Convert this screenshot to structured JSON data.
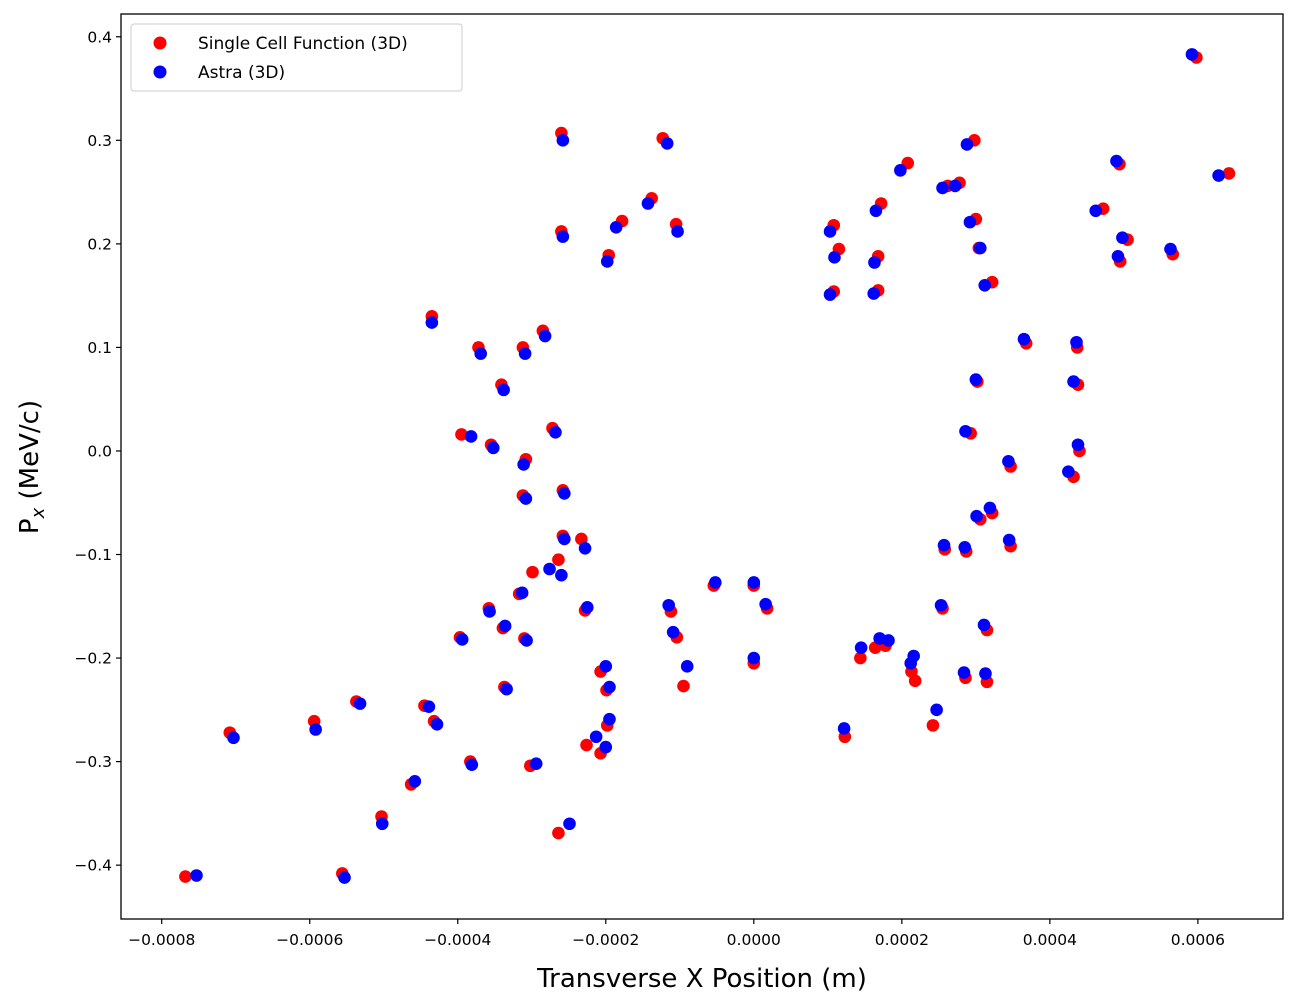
{
  "chart_data": {
    "type": "scatter",
    "title": "",
    "xlabel": "Transverse X Position (m)",
    "ylabel": "P",
    "ylabel_sub": "x",
    "ylabel_suffix": " (MeV/c)",
    "xlim": [
      -0.000855,
      0.000715
    ],
    "ylim": [
      -0.452,
      0.422
    ],
    "grid": false,
    "legend_position": "top-left",
    "x_ticks": [
      -0.0008,
      -0.0006,
      -0.0004,
      -0.0002,
      0.0,
      0.0002,
      0.0004,
      0.0006
    ],
    "x_tick_labels": [
      "−0.0008",
      "−0.0006",
      "−0.0004",
      "−0.0002",
      "0.0000",
      "0.0002",
      "0.0004",
      "0.0006"
    ],
    "y_ticks": [
      -0.4,
      -0.3,
      -0.2,
      -0.1,
      0.0,
      0.1,
      0.2,
      0.3,
      0.4
    ],
    "y_tick_labels": [
      "−0.4",
      "−0.3",
      "−0.2",
      "−0.1",
      "0.0",
      "0.1",
      "0.2",
      "0.3",
      "0.4"
    ],
    "series": [
      {
        "name": "Single Cell Function (3D)",
        "color": "#ff0000",
        "points": [
          [
            0.000598,
            0.38
          ],
          [
            0.000642,
            0.268
          ],
          [
            0.000566,
            0.19
          ],
          [
            0.000505,
            0.204
          ],
          [
            0.000495,
            0.183
          ],
          [
            0.000494,
            0.277
          ],
          [
            0.000472,
            0.234
          ],
          [
            0.000298,
            0.3
          ],
          [
            0.000278,
            0.259
          ],
          [
            0.000262,
            0.256
          ],
          [
            0.0003,
            0.224
          ],
          [
            0.000304,
            0.196
          ],
          [
            0.000322,
            0.163
          ],
          [
            0.000208,
            0.278
          ],
          [
            0.000172,
            0.239
          ],
          [
            0.000168,
            0.188
          ],
          [
            0.000168,
            0.155
          ],
          [
            0.000108,
            0.218
          ],
          [
            0.000108,
            0.154
          ],
          [
            0.000115,
            0.195
          ],
          [
            0.000368,
            0.104
          ],
          [
            0.000437,
            0.1
          ],
          [
            0.000438,
            0.064
          ],
          [
            0.000302,
            0.067
          ],
          [
            0.000293,
            0.017
          ],
          [
            0.00044,
            0.0
          ],
          [
            0.000432,
            -0.025
          ],
          [
            0.000347,
            -0.015
          ],
          [
            0.000322,
            -0.06
          ],
          [
            0.000306,
            -0.066
          ],
          [
            0.000347,
            -0.092
          ],
          [
            0.000287,
            -0.097
          ],
          [
            0.000258,
            -0.095
          ],
          [
            0.000255,
            -0.152
          ],
          [
            0.000315,
            -0.173
          ],
          [
            0.000315,
            -0.223
          ],
          [
            0.000286,
            -0.219
          ],
          [
            0.000242,
            -0.265
          ],
          [
            0.000218,
            -0.222
          ],
          [
            0.000213,
            -0.213
          ],
          [
            0.000123,
            -0.276
          ],
          [
            0.000144,
            -0.2
          ],
          [
            0.000164,
            -0.19
          ],
          [
            0.000178,
            -0.188
          ],
          [
            -0.000123,
            0.302
          ],
          [
            -0.00026,
            0.307
          ],
          [
            -0.00026,
            0.212
          ],
          [
            -0.000138,
            0.244
          ],
          [
            -0.000105,
            0.219
          ],
          [
            -0.000196,
            0.189
          ],
          [
            -0.000178,
            0.222
          ],
          [
            -0.000435,
            0.13
          ],
          [
            -0.000372,
            0.1
          ],
          [
            -0.000312,
            0.1
          ],
          [
            -0.000285,
            0.116
          ],
          [
            -0.000341,
            0.064
          ],
          [
            -0.000395,
            0.016
          ],
          [
            -0.000355,
            0.006
          ],
          [
            -0.000308,
            -0.008
          ],
          [
            -0.000312,
            -0.043
          ],
          [
            -0.000272,
            0.022
          ],
          [
            -0.000258,
            -0.038
          ],
          [
            -0.000397,
            -0.18
          ],
          [
            -0.000358,
            -0.152
          ],
          [
            -0.000339,
            -0.171
          ],
          [
            -0.000317,
            -0.138
          ],
          [
            -0.00031,
            -0.181
          ],
          [
            -0.000299,
            -0.117
          ],
          [
            -0.000264,
            -0.105
          ],
          [
            -0.000258,
            -0.082
          ],
          [
            -0.000233,
            -0.085
          ],
          [
            -0.000228,
            -0.154
          ],
          [
            -0.000537,
            -0.242
          ],
          [
            -0.000445,
            -0.246
          ],
          [
            -0.000432,
            -0.261
          ],
          [
            -0.000463,
            -0.322
          ],
          [
            -0.000383,
            -0.3
          ],
          [
            -0.000337,
            -0.228
          ],
          [
            -0.000302,
            -0.304
          ],
          [
            -0.000264,
            -0.369
          ],
          [
            -0.000226,
            -0.284
          ],
          [
            -0.000207,
            -0.292
          ],
          [
            -0.000198,
            -0.265
          ],
          [
            -0.000199,
            -0.231
          ],
          [
            -0.000708,
            -0.272
          ],
          [
            -0.000594,
            -0.261
          ],
          [
            -0.000503,
            -0.353
          ],
          [
            -0.000556,
            -0.408
          ],
          [
            -0.000768,
            -0.411
          ],
          [
            -9.5e-05,
            -0.227
          ],
          [
            -0.000207,
            -0.213
          ],
          [
            0.0,
            -0.205
          ],
          [
            0.0,
            -0.13
          ],
          [
            -5.4e-05,
            -0.13
          ],
          [
            1.8e-05,
            -0.152
          ],
          [
            -0.000104,
            -0.18
          ],
          [
            -0.000112,
            -0.155
          ]
        ]
      },
      {
        "name": "Astra (3D)",
        "color": "#0000ff",
        "points": [
          [
            0.000592,
            0.383
          ],
          [
            0.000628,
            0.266
          ],
          [
            0.000563,
            0.195
          ],
          [
            0.000498,
            0.206
          ],
          [
            0.000492,
            0.188
          ],
          [
            0.00049,
            0.28
          ],
          [
            0.000462,
            0.232
          ],
          [
            0.000288,
            0.296
          ],
          [
            0.000272,
            0.256
          ],
          [
            0.000255,
            0.254
          ],
          [
            0.000292,
            0.221
          ],
          [
            0.000306,
            0.196
          ],
          [
            0.000312,
            0.16
          ],
          [
            0.000198,
            0.271
          ],
          [
            0.000165,
            0.232
          ],
          [
            0.000163,
            0.182
          ],
          [
            0.000162,
            0.152
          ],
          [
            0.000103,
            0.212
          ],
          [
            0.000103,
            0.151
          ],
          [
            0.000109,
            0.187
          ],
          [
            0.000365,
            0.108
          ],
          [
            0.000436,
            0.105
          ],
          [
            0.000432,
            0.067
          ],
          [
            0.0003,
            0.069
          ],
          [
            0.000286,
            0.019
          ],
          [
            0.000438,
            0.006
          ],
          [
            0.000425,
            -0.02
          ],
          [
            0.000344,
            -0.01
          ],
          [
            0.000319,
            -0.055
          ],
          [
            0.000301,
            -0.063
          ],
          [
            0.000345,
            -0.086
          ],
          [
            0.000285,
            -0.093
          ],
          [
            0.000257,
            -0.091
          ],
          [
            0.000253,
            -0.149
          ],
          [
            0.000311,
            -0.168
          ],
          [
            0.000313,
            -0.215
          ],
          [
            0.000284,
            -0.214
          ],
          [
            0.000247,
            -0.25
          ],
          [
            0.000216,
            -0.198
          ],
          [
            0.000212,
            -0.205
          ],
          [
            0.000122,
            -0.268
          ],
          [
            0.000145,
            -0.19
          ],
          [
            0.00017,
            -0.181
          ],
          [
            0.000182,
            -0.183
          ],
          [
            -0.000117,
            0.297
          ],
          [
            -0.000258,
            0.3
          ],
          [
            -0.000258,
            0.207
          ],
          [
            -0.000143,
            0.239
          ],
          [
            -0.000103,
            0.212
          ],
          [
            -0.000198,
            0.183
          ],
          [
            -0.000186,
            0.216
          ],
          [
            -0.000435,
            0.124
          ],
          [
            -0.000369,
            0.094
          ],
          [
            -0.000309,
            0.094
          ],
          [
            -0.000282,
            0.111
          ],
          [
            -0.000338,
            0.059
          ],
          [
            -0.000382,
            0.014
          ],
          [
            -0.000352,
            0.003
          ],
          [
            -0.000311,
            -0.013
          ],
          [
            -0.000308,
            -0.046
          ],
          [
            -0.000268,
            0.018
          ],
          [
            -0.000256,
            -0.041
          ],
          [
            -0.000394,
            -0.182
          ],
          [
            -0.000357,
            -0.155
          ],
          [
            -0.000336,
            -0.169
          ],
          [
            -0.000313,
            -0.137
          ],
          [
            -0.000307,
            -0.183
          ],
          [
            -0.000276,
            -0.114
          ],
          [
            -0.00026,
            -0.12
          ],
          [
            -0.000256,
            -0.085
          ],
          [
            -0.000228,
            -0.094
          ],
          [
            -0.000225,
            -0.151
          ],
          [
            -0.000532,
            -0.244
          ],
          [
            -0.000439,
            -0.247
          ],
          [
            -0.000428,
            -0.264
          ],
          [
            -0.000458,
            -0.319
          ],
          [
            -0.000381,
            -0.303
          ],
          [
            -0.000334,
            -0.23
          ],
          [
            -0.000294,
            -0.302
          ],
          [
            -0.000249,
            -0.36
          ],
          [
            -0.000213,
            -0.276
          ],
          [
            -0.0002,
            -0.286
          ],
          [
            -0.000195,
            -0.259
          ],
          [
            -0.000195,
            -0.228
          ],
          [
            -0.000703,
            -0.277
          ],
          [
            -0.000592,
            -0.269
          ],
          [
            -0.000502,
            -0.36
          ],
          [
            -0.000553,
            -0.412
          ],
          [
            -0.000753,
            -0.41
          ],
          [
            -9e-05,
            -0.208
          ],
          [
            -0.0002,
            -0.208
          ],
          [
            0.0,
            -0.2
          ],
          [
            0.0,
            -0.127
          ],
          [
            -5.2e-05,
            -0.127
          ],
          [
            1.6e-05,
            -0.148
          ],
          [
            -0.000109,
            -0.175
          ],
          [
            -0.000115,
            -0.149
          ]
        ]
      }
    ]
  }
}
